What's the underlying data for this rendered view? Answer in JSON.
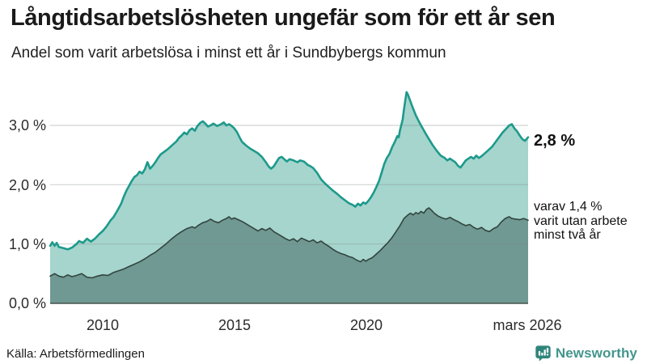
{
  "chart_data": {
    "type": "area",
    "title": "Långtidsarbetslösheten ungefär som för ett år sen",
    "subtitle": "Andel som varit arbetslösa i minst ett år i Sundbybergs kommun",
    "xlabel": "",
    "ylabel": "",
    "x_range": [
      "2008-01",
      "2026-03"
    ],
    "ylim": [
      0,
      3.6
    ],
    "grid": true,
    "legend_position": "none",
    "yticks": [
      "0,0 %",
      "1,0 %",
      "2,0 %",
      "3,0 %"
    ],
    "xticks": [
      "2010",
      "2015",
      "2020",
      "mars 2026"
    ],
    "annotations": {
      "latest_total": "2,8 %",
      "subset_note": "varav 1,4 %\nvarit utan arbete\nminst två år"
    },
    "series": [
      {
        "name": "Andel arbetslösa minst ett år",
        "color": "#1d9a8b",
        "fill": "#a5d5cd",
        "latest_value": 2.8,
        "points": [
          [
            2008.0,
            0.97
          ],
          [
            2008.08,
            1.03
          ],
          [
            2008.17,
            0.97
          ],
          [
            2008.25,
            1.02
          ],
          [
            2008.33,
            0.95
          ],
          [
            2008.5,
            0.93
          ],
          [
            2008.67,
            0.91
          ],
          [
            2008.83,
            0.94
          ],
          [
            2009.0,
            1.0
          ],
          [
            2009.1,
            1.05
          ],
          [
            2009.25,
            1.02
          ],
          [
            2009.4,
            1.09
          ],
          [
            2009.55,
            1.04
          ],
          [
            2009.7,
            1.09
          ],
          [
            2009.85,
            1.16
          ],
          [
            2010.0,
            1.22
          ],
          [
            2010.15,
            1.3
          ],
          [
            2010.3,
            1.4
          ],
          [
            2010.4,
            1.45
          ],
          [
            2010.5,
            1.52
          ],
          [
            2010.6,
            1.6
          ],
          [
            2010.7,
            1.68
          ],
          [
            2010.8,
            1.8
          ],
          [
            2010.9,
            1.9
          ],
          [
            2011.0,
            1.98
          ],
          [
            2011.1,
            2.06
          ],
          [
            2011.2,
            2.13
          ],
          [
            2011.3,
            2.16
          ],
          [
            2011.4,
            2.22
          ],
          [
            2011.5,
            2.19
          ],
          [
            2011.6,
            2.26
          ],
          [
            2011.7,
            2.38
          ],
          [
            2011.8,
            2.27
          ],
          [
            2011.9,
            2.32
          ],
          [
            2012.0,
            2.38
          ],
          [
            2012.1,
            2.45
          ],
          [
            2012.2,
            2.51
          ],
          [
            2012.35,
            2.56
          ],
          [
            2012.5,
            2.61
          ],
          [
            2012.65,
            2.67
          ],
          [
            2012.8,
            2.73
          ],
          [
            2012.9,
            2.79
          ],
          [
            2013.0,
            2.83
          ],
          [
            2013.1,
            2.88
          ],
          [
            2013.2,
            2.85
          ],
          [
            2013.3,
            2.92
          ],
          [
            2013.4,
            2.95
          ],
          [
            2013.5,
            2.91
          ],
          [
            2013.6,
            2.99
          ],
          [
            2013.7,
            3.04
          ],
          [
            2013.8,
            3.07
          ],
          [
            2013.9,
            3.03
          ],
          [
            2014.0,
            2.98
          ],
          [
            2014.1,
            3.0
          ],
          [
            2014.2,
            3.03
          ],
          [
            2014.35,
            2.99
          ],
          [
            2014.5,
            3.02
          ],
          [
            2014.6,
            3.05
          ],
          [
            2014.7,
            3.0
          ],
          [
            2014.8,
            3.02
          ],
          [
            2014.9,
            2.99
          ],
          [
            2015.0,
            2.95
          ],
          [
            2015.1,
            2.89
          ],
          [
            2015.2,
            2.8
          ],
          [
            2015.3,
            2.72
          ],
          [
            2015.45,
            2.66
          ],
          [
            2015.6,
            2.61
          ],
          [
            2015.75,
            2.57
          ],
          [
            2015.9,
            2.53
          ],
          [
            2016.05,
            2.47
          ],
          [
            2016.2,
            2.38
          ],
          [
            2016.3,
            2.31
          ],
          [
            2016.4,
            2.27
          ],
          [
            2016.5,
            2.31
          ],
          [
            2016.6,
            2.38
          ],
          [
            2016.7,
            2.45
          ],
          [
            2016.8,
            2.47
          ],
          [
            2016.9,
            2.43
          ],
          [
            2017.0,
            2.39
          ],
          [
            2017.1,
            2.43
          ],
          [
            2017.25,
            2.41
          ],
          [
            2017.4,
            2.38
          ],
          [
            2017.5,
            2.41
          ],
          [
            2017.65,
            2.39
          ],
          [
            2017.8,
            2.33
          ],
          [
            2017.9,
            2.31
          ],
          [
            2018.0,
            2.28
          ],
          [
            2018.15,
            2.2
          ],
          [
            2018.3,
            2.09
          ],
          [
            2018.45,
            2.02
          ],
          [
            2018.6,
            1.96
          ],
          [
            2018.75,
            1.9
          ],
          [
            2018.9,
            1.85
          ],
          [
            2019.05,
            1.79
          ],
          [
            2019.2,
            1.74
          ],
          [
            2019.35,
            1.69
          ],
          [
            2019.5,
            1.66
          ],
          [
            2019.6,
            1.63
          ],
          [
            2019.7,
            1.68
          ],
          [
            2019.8,
            1.65
          ],
          [
            2019.9,
            1.7
          ],
          [
            2020.0,
            1.68
          ],
          [
            2020.1,
            1.73
          ],
          [
            2020.2,
            1.79
          ],
          [
            2020.3,
            1.87
          ],
          [
            2020.4,
            1.96
          ],
          [
            2020.5,
            2.06
          ],
          [
            2020.6,
            2.2
          ],
          [
            2020.7,
            2.35
          ],
          [
            2020.8,
            2.45
          ],
          [
            2020.9,
            2.52
          ],
          [
            2021.0,
            2.63
          ],
          [
            2021.1,
            2.72
          ],
          [
            2021.2,
            2.82
          ],
          [
            2021.25,
            2.8
          ],
          [
            2021.3,
            2.92
          ],
          [
            2021.4,
            3.1
          ],
          [
            2021.45,
            3.27
          ],
          [
            2021.5,
            3.42
          ],
          [
            2021.55,
            3.56
          ],
          [
            2021.6,
            3.52
          ],
          [
            2021.7,
            3.4
          ],
          [
            2021.8,
            3.28
          ],
          [
            2021.9,
            3.17
          ],
          [
            2022.0,
            3.08
          ],
          [
            2022.1,
            3.0
          ],
          [
            2022.25,
            2.88
          ],
          [
            2022.4,
            2.77
          ],
          [
            2022.55,
            2.66
          ],
          [
            2022.7,
            2.57
          ],
          [
            2022.85,
            2.49
          ],
          [
            2023.0,
            2.45
          ],
          [
            2023.1,
            2.41
          ],
          [
            2023.2,
            2.44
          ],
          [
            2023.3,
            2.41
          ],
          [
            2023.4,
            2.38
          ],
          [
            2023.5,
            2.32
          ],
          [
            2023.6,
            2.29
          ],
          [
            2023.7,
            2.35
          ],
          [
            2023.8,
            2.41
          ],
          [
            2023.9,
            2.44
          ],
          [
            2024.0,
            2.47
          ],
          [
            2024.1,
            2.44
          ],
          [
            2024.2,
            2.49
          ],
          [
            2024.3,
            2.45
          ],
          [
            2024.4,
            2.48
          ],
          [
            2024.5,
            2.52
          ],
          [
            2024.65,
            2.58
          ],
          [
            2024.8,
            2.64
          ],
          [
            2024.9,
            2.7
          ],
          [
            2025.0,
            2.76
          ],
          [
            2025.1,
            2.82
          ],
          [
            2025.2,
            2.88
          ],
          [
            2025.35,
            2.95
          ],
          [
            2025.45,
            3.0
          ],
          [
            2025.55,
            3.02
          ],
          [
            2025.65,
            2.95
          ],
          [
            2025.75,
            2.9
          ],
          [
            2025.85,
            2.83
          ],
          [
            2025.95,
            2.77
          ],
          [
            2026.05,
            2.74
          ],
          [
            2026.17,
            2.8
          ]
        ]
      },
      {
        "name": "varav utan arbete minst två år",
        "color": "#33443f",
        "fill": "#6f9992",
        "latest_value": 1.4,
        "points": [
          [
            2008.0,
            0.46
          ],
          [
            2008.17,
            0.5
          ],
          [
            2008.33,
            0.46
          ],
          [
            2008.5,
            0.44
          ],
          [
            2008.67,
            0.48
          ],
          [
            2008.83,
            0.45
          ],
          [
            2009.0,
            0.47
          ],
          [
            2009.2,
            0.5
          ],
          [
            2009.4,
            0.44
          ],
          [
            2009.6,
            0.43
          ],
          [
            2009.8,
            0.46
          ],
          [
            2010.0,
            0.48
          ],
          [
            2010.2,
            0.47
          ],
          [
            2010.4,
            0.52
          ],
          [
            2010.6,
            0.55
          ],
          [
            2010.8,
            0.58
          ],
          [
            2011.0,
            0.62
          ],
          [
            2011.2,
            0.66
          ],
          [
            2011.4,
            0.7
          ],
          [
            2011.6,
            0.75
          ],
          [
            2011.8,
            0.81
          ],
          [
            2012.0,
            0.86
          ],
          [
            2012.2,
            0.93
          ],
          [
            2012.4,
            1.0
          ],
          [
            2012.6,
            1.08
          ],
          [
            2012.8,
            1.15
          ],
          [
            2013.0,
            1.21
          ],
          [
            2013.2,
            1.26
          ],
          [
            2013.4,
            1.29
          ],
          [
            2013.5,
            1.27
          ],
          [
            2013.65,
            1.32
          ],
          [
            2013.8,
            1.36
          ],
          [
            2013.95,
            1.38
          ],
          [
            2014.1,
            1.42
          ],
          [
            2014.25,
            1.38
          ],
          [
            2014.4,
            1.36
          ],
          [
            2014.55,
            1.4
          ],
          [
            2014.7,
            1.43
          ],
          [
            2014.8,
            1.46
          ],
          [
            2014.9,
            1.42
          ],
          [
            2015.0,
            1.44
          ],
          [
            2015.15,
            1.41
          ],
          [
            2015.3,
            1.38
          ],
          [
            2015.45,
            1.34
          ],
          [
            2015.6,
            1.3
          ],
          [
            2015.75,
            1.26
          ],
          [
            2015.9,
            1.22
          ],
          [
            2016.05,
            1.26
          ],
          [
            2016.2,
            1.23
          ],
          [
            2016.35,
            1.27
          ],
          [
            2016.5,
            1.21
          ],
          [
            2016.65,
            1.17
          ],
          [
            2016.8,
            1.13
          ],
          [
            2016.95,
            1.09
          ],
          [
            2017.1,
            1.06
          ],
          [
            2017.25,
            1.09
          ],
          [
            2017.4,
            1.04
          ],
          [
            2017.55,
            1.1
          ],
          [
            2017.7,
            1.07
          ],
          [
            2017.85,
            1.04
          ],
          [
            2018.0,
            1.07
          ],
          [
            2018.15,
            1.02
          ],
          [
            2018.3,
            1.05
          ],
          [
            2018.45,
            1.0
          ],
          [
            2018.6,
            0.96
          ],
          [
            2018.75,
            0.91
          ],
          [
            2018.9,
            0.87
          ],
          [
            2019.05,
            0.84
          ],
          [
            2019.2,
            0.82
          ],
          [
            2019.35,
            0.79
          ],
          [
            2019.5,
            0.77
          ],
          [
            2019.65,
            0.73
          ],
          [
            2019.8,
            0.7
          ],
          [
            2019.9,
            0.74
          ],
          [
            2020.0,
            0.71
          ],
          [
            2020.1,
            0.74
          ],
          [
            2020.25,
            0.77
          ],
          [
            2020.4,
            0.83
          ],
          [
            2020.55,
            0.89
          ],
          [
            2020.7,
            0.96
          ],
          [
            2020.85,
            1.03
          ],
          [
            2021.0,
            1.11
          ],
          [
            2021.15,
            1.21
          ],
          [
            2021.3,
            1.31
          ],
          [
            2021.45,
            1.43
          ],
          [
            2021.6,
            1.49
          ],
          [
            2021.7,
            1.52
          ],
          [
            2021.8,
            1.49
          ],
          [
            2021.9,
            1.53
          ],
          [
            2022.0,
            1.51
          ],
          [
            2022.1,
            1.55
          ],
          [
            2022.2,
            1.52
          ],
          [
            2022.3,
            1.58
          ],
          [
            2022.4,
            1.61
          ],
          [
            2022.5,
            1.57
          ],
          [
            2022.6,
            1.52
          ],
          [
            2022.75,
            1.47
          ],
          [
            2022.9,
            1.44
          ],
          [
            2023.05,
            1.42
          ],
          [
            2023.2,
            1.45
          ],
          [
            2023.35,
            1.41
          ],
          [
            2023.5,
            1.38
          ],
          [
            2023.65,
            1.34
          ],
          [
            2023.8,
            1.31
          ],
          [
            2023.95,
            1.33
          ],
          [
            2024.1,
            1.28
          ],
          [
            2024.25,
            1.25
          ],
          [
            2024.4,
            1.28
          ],
          [
            2024.55,
            1.23
          ],
          [
            2024.7,
            1.21
          ],
          [
            2024.85,
            1.26
          ],
          [
            2025.0,
            1.29
          ],
          [
            2025.15,
            1.37
          ],
          [
            2025.3,
            1.43
          ],
          [
            2025.45,
            1.46
          ],
          [
            2025.55,
            1.43
          ],
          [
            2025.7,
            1.42
          ],
          [
            2025.85,
            1.41
          ],
          [
            2026.0,
            1.43
          ],
          [
            2026.17,
            1.4
          ]
        ]
      }
    ],
    "colors": {
      "accent_teal": "#1d9a8b",
      "light_fill": "#a5d5cd",
      "dark_fill": "#6f9992",
      "dark_stroke": "#33443f",
      "baseline": "#45524e",
      "gridline": "#c9cfce"
    }
  },
  "footer": {
    "source": "Källa: Arbetsförmedlingen",
    "brand": "Newsworthy"
  }
}
